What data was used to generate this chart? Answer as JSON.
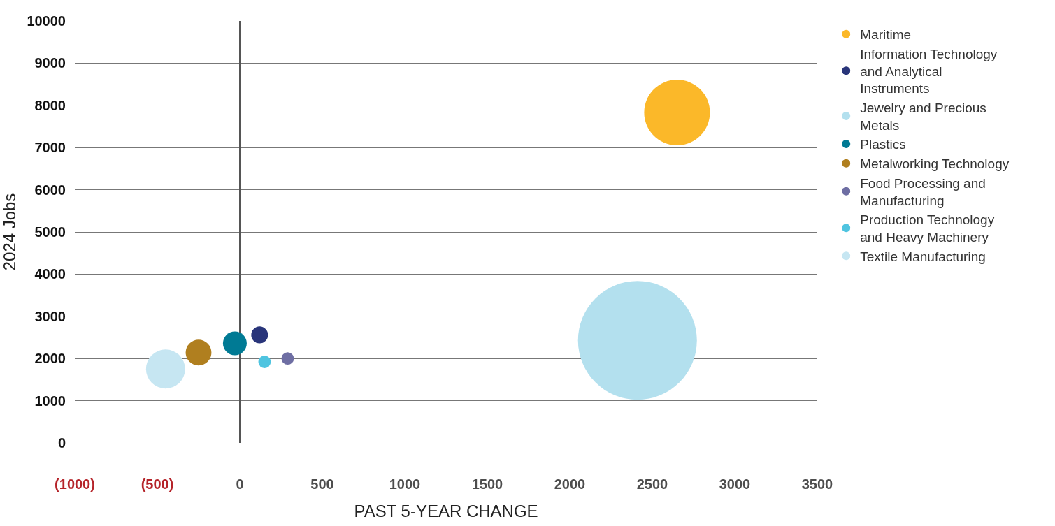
{
  "chart_data": {
    "type": "bubble",
    "xlabel": "PAST 5-YEAR CHANGE",
    "ylabel": "2024 Jobs",
    "xlim": [
      -1000,
      3500
    ],
    "ylim": [
      0,
      10000
    ],
    "xticks": [
      {
        "value": -1000,
        "label": "(1000)"
      },
      {
        "value": -500,
        "label": "(500)"
      },
      0,
      500,
      1000,
      1500,
      2000,
      2500,
      3000,
      3500
    ],
    "yticks": [
      0,
      1000,
      2000,
      3000,
      4000,
      5000,
      6000,
      7000,
      8000,
      9000,
      10000
    ],
    "grid": "y",
    "legend": "top right",
    "series": [
      {
        "name": "Maritime",
        "color": "#fbb829",
        "x": [
          2650
        ],
        "values": [
          7830
        ],
        "sizes": [
          0.306
        ]
      },
      {
        "name": "Information Technology and Analytical Instruments",
        "color": "#29357a",
        "x": [
          120
        ],
        "values": [
          2560
        ],
        "sizes": [
          0.02
        ]
      },
      {
        "name": "Jewelry and Precious Metals",
        "color": "#b3e0ee",
        "x": [
          2410
        ],
        "values": [
          2430
        ],
        "sizes": [
          1
        ]
      },
      {
        "name": "Plastics",
        "color": "#007a94",
        "x": [
          -30
        ],
        "values": [
          2360
        ],
        "sizes": [
          0.04
        ]
      },
      {
        "name": "Metalworking Technology",
        "color": "#b07f1f",
        "x": [
          -250
        ],
        "values": [
          2140
        ],
        "sizes": [
          0.047
        ]
      },
      {
        "name": "Food Processing and Manufacturing",
        "color": "#6e6ea3",
        "x": [
          290
        ],
        "values": [
          2000
        ],
        "sizes": [
          0.011
        ]
      },
      {
        "name": "Production Technology and Heavy Machinery",
        "color": "#4fc4e0",
        "x": [
          150
        ],
        "values": [
          1920
        ],
        "sizes": [
          0.011
        ]
      },
      {
        "name": "Textile Manufacturing",
        "color": "#c6e6f2",
        "x": [
          -450
        ],
        "values": [
          1750
        ],
        "sizes": [
          0.108
        ]
      }
    ]
  }
}
